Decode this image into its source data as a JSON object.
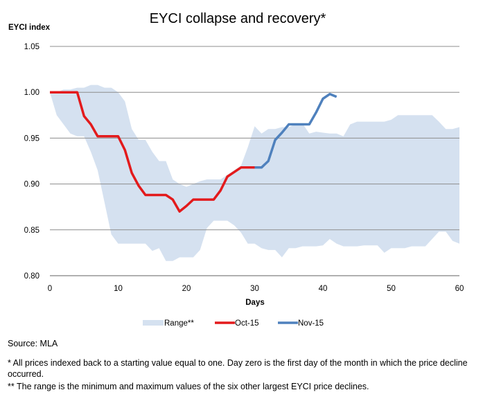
{
  "chart_data": {
    "type": "area",
    "title": "EYCI collapse and recovery*",
    "ylabel": "EYCI index",
    "xlabel": "Days",
    "xlim": [
      0,
      60
    ],
    "ylim": [
      0.8,
      1.05
    ],
    "x_ticks": [
      0,
      10,
      20,
      30,
      40,
      50,
      60
    ],
    "y_ticks": [
      "1.05",
      "1.00",
      "0.95",
      "0.90",
      "0.85",
      "0.80"
    ],
    "y_tick_values": [
      1.05,
      1.0,
      0.95,
      0.9,
      0.85,
      0.8
    ],
    "grid": "horizontal",
    "legend_position": "bottom",
    "range": {
      "name": "Range**",
      "color": "#d5e1f0",
      "x": [
        0,
        1,
        2,
        3,
        4,
        5,
        6,
        7,
        8,
        9,
        10,
        11,
        12,
        13,
        14,
        15,
        16,
        17,
        18,
        19,
        20,
        21,
        22,
        23,
        24,
        25,
        26,
        27,
        28,
        29,
        30,
        31,
        32,
        33,
        34,
        35,
        36,
        37,
        38,
        39,
        40,
        41,
        42,
        43,
        44,
        45,
        46,
        47,
        48,
        49,
        50,
        51,
        52,
        53,
        54,
        55,
        56,
        57,
        58,
        59,
        60
      ],
      "upper": [
        1.0,
        1.0,
        1.003,
        1.003,
        1.005,
        1.005,
        1.008,
        1.008,
        1.005,
        1.005,
        1.0,
        0.99,
        0.96,
        0.948,
        0.948,
        0.935,
        0.925,
        0.925,
        0.905,
        0.9,
        0.897,
        0.9,
        0.903,
        0.905,
        0.905,
        0.905,
        0.91,
        0.915,
        0.92,
        0.94,
        0.963,
        0.955,
        0.96,
        0.96,
        0.962,
        0.962,
        0.965,
        0.966,
        0.955,
        0.957,
        0.956,
        0.955,
        0.955,
        0.952,
        0.965,
        0.968,
        0.968,
        0.968,
        0.968,
        0.968,
        0.97,
        0.975,
        0.975,
        0.975,
        0.975,
        0.975,
        0.975,
        0.968,
        0.96,
        0.96,
        0.962
      ],
      "lower": [
        1.0,
        0.975,
        0.965,
        0.955,
        0.952,
        0.952,
        0.935,
        0.915,
        0.88,
        0.845,
        0.835,
        0.835,
        0.835,
        0.835,
        0.835,
        0.827,
        0.83,
        0.816,
        0.816,
        0.82,
        0.82,
        0.82,
        0.828,
        0.852,
        0.86,
        0.86,
        0.86,
        0.855,
        0.847,
        0.835,
        0.835,
        0.83,
        0.828,
        0.828,
        0.82,
        0.83,
        0.83,
        0.832,
        0.832,
        0.832,
        0.833,
        0.84,
        0.835,
        0.832,
        0.832,
        0.832,
        0.833,
        0.833,
        0.833,
        0.825,
        0.83,
        0.83,
        0.83,
        0.832,
        0.832,
        0.832,
        0.84,
        0.848,
        0.848,
        0.838,
        0.835
      ]
    },
    "series": [
      {
        "name": "Oct-15",
        "color": "#e31a1c",
        "x": [
          0,
          1,
          2,
          3,
          4,
          5,
          6,
          7,
          8,
          9,
          10,
          11,
          12,
          13,
          14,
          15,
          16,
          17,
          18,
          19,
          20,
          21,
          22,
          23,
          24,
          25,
          26,
          27,
          28,
          29,
          30
        ],
        "values": [
          1.0,
          1.0,
          1.0,
          1.0,
          1.0,
          0.974,
          0.965,
          0.952,
          0.952,
          0.952,
          0.952,
          0.937,
          0.912,
          0.898,
          0.888,
          0.888,
          0.888,
          0.888,
          0.883,
          0.87,
          0.876,
          0.883,
          0.883,
          0.883,
          0.883,
          0.893,
          0.908,
          0.913,
          0.918,
          0.918,
          0.918
        ]
      },
      {
        "name": "Nov-15",
        "color": "#4f81bd",
        "x": [
          30,
          31,
          32,
          33,
          34,
          35,
          36,
          37,
          38,
          39,
          40,
          41,
          42
        ],
        "values": [
          0.918,
          0.918,
          0.925,
          0.948,
          0.956,
          0.965,
          0.965,
          0.965,
          0.965,
          0.978,
          0.993,
          0.998,
          0.995
        ]
      }
    ]
  },
  "source": "Source: MLA",
  "footnote_1": "* All prices indexed back to a starting value equal to one. Day zero is the first day of the month in which the price decline occurred.",
  "footnote_2": "** The range is the minimum and maximum values of the six other largest EYCI price declines."
}
